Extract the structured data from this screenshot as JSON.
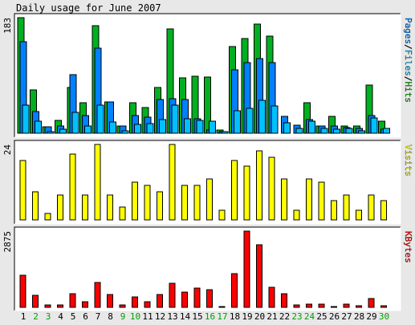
{
  "chart_data": {
    "type": "bar",
    "title": "Daily usage for June 2007",
    "categories": [
      "1",
      "2",
      "3",
      "4",
      "5",
      "6",
      "7",
      "8",
      "9",
      "10",
      "11",
      "12",
      "13",
      "14",
      "15",
      "16",
      "17",
      "18",
      "19",
      "20",
      "21",
      "22",
      "23",
      "24",
      "25",
      "26",
      "27",
      "28",
      "29",
      "30"
    ],
    "weekend_days": [
      "2",
      "3",
      "9",
      "10",
      "16",
      "17",
      "23",
      "24",
      "30"
    ],
    "panels": [
      {
        "id": "hits",
        "ymax": 183,
        "ylabel_parts": [
          {
            "text": "Pages",
            "color": "#0080ff"
          },
          {
            "text": "/",
            "color": "#000000"
          },
          {
            "text": "Files",
            "color": "#00c0ff"
          },
          {
            "text": "/",
            "color": "#000000"
          },
          {
            "text": "Hits",
            "color": "#00c000"
          }
        ],
        "series": [
          {
            "name": "Hits",
            "color": "#00b020",
            "values": [
              183,
              69,
              10,
              20,
              72,
              48,
              170,
              50,
              12,
              48,
              41,
              72,
              165,
              88,
              90,
              89,
              5,
              137,
              150,
              173,
              154,
              0,
              0,
              48,
              12,
              27,
              11,
              12,
              76,
              19
            ]
          },
          {
            "name": "Files",
            "color": "#0080ff",
            "values": [
              145,
              34,
              10,
              12,
              93,
              28,
              135,
              50,
              11,
              28,
              26,
              54,
              55,
              53,
              23,
              5,
              3,
              100,
              112,
              118,
              112,
              27,
              13,
              21,
              12,
              11,
              9,
              7,
              28,
              6
            ]
          },
          {
            "name": "Pages",
            "color": "#00c0ff",
            "values": [
              44,
              19,
              3,
              6,
              33,
              12,
              44,
              18,
              4,
              14,
              15,
              21,
              45,
              23,
              20,
              19,
              2,
              36,
              40,
              52,
              43,
              16,
              8,
              19,
              8,
              6,
              7,
              4,
              24,
              8
            ]
          }
        ]
      },
      {
        "id": "visits",
        "ymax": 24,
        "ylabel_parts": [
          {
            "text": "Visits",
            "color": "#ffff00"
          }
        ],
        "series": [
          {
            "name": "Visits",
            "color": "#ffff00",
            "values": [
              19,
              9,
              2,
              8,
              21,
              8,
              24,
              8,
              4,
              12,
              11,
              9,
              24,
              11,
              11,
              13,
              3,
              19,
              17,
              22,
              20,
              13,
              3,
              13,
              12,
              6,
              8,
              3,
              8,
              6
            ]
          }
        ]
      },
      {
        "id": "kbytes",
        "ymax": 2875,
        "ylabel_parts": [
          {
            "text": "KBytes",
            "color": "#ff0000"
          }
        ],
        "series": [
          {
            "name": "KBytes",
            "color": "#ff0000",
            "values": [
              1200,
              450,
              80,
              80,
              520,
              200,
              950,
              480,
              80,
              380,
              220,
              470,
              920,
              560,
              720,
              660,
              20,
              1280,
              2875,
              2350,
              760,
              500,
              80,
              120,
              120,
              30,
              130,
              60,
              340,
              70
            ]
          }
        ]
      }
    ]
  }
}
